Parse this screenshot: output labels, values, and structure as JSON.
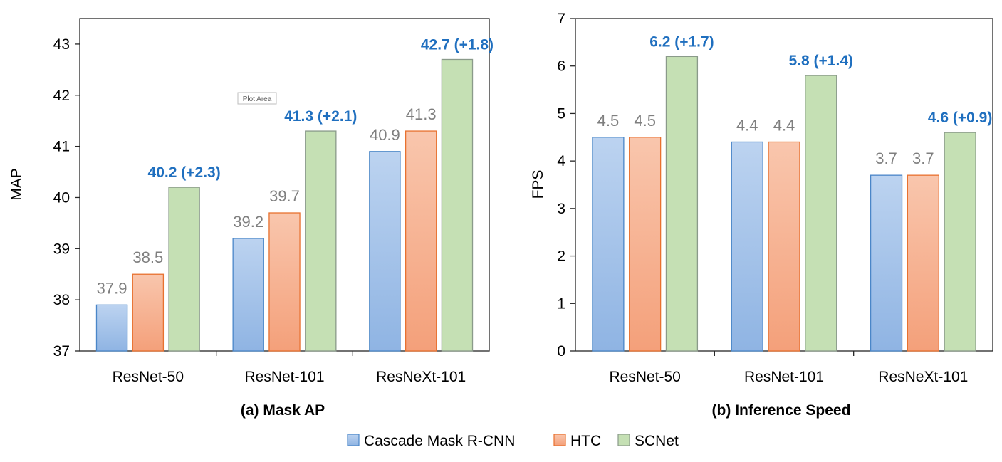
{
  "chart_data": [
    {
      "type": "bar",
      "title": "(a) Mask AP",
      "ylabel": "MAP",
      "ylim": [
        37,
        43.5
      ],
      "yticks": [
        37,
        38,
        39,
        40,
        41,
        42,
        43
      ],
      "categories": [
        "ResNet-50",
        "ResNet-101",
        "ResNeXt-101"
      ],
      "series": [
        {
          "name": "Cascade Mask R-CNN",
          "values": [
            37.9,
            39.2,
            40.9
          ],
          "labels": [
            "37.9",
            "39.2",
            "40.9"
          ]
        },
        {
          "name": "HTC",
          "values": [
            38.5,
            39.7,
            41.3
          ],
          "labels": [
            "38.5",
            "39.7",
            "41.3"
          ]
        },
        {
          "name": "SCNet",
          "values": [
            40.2,
            41.3,
            42.7
          ],
          "labels": [
            "40.2 (+2.3)",
            "41.3 (+2.1)",
            "42.7 (+1.8)"
          ]
        }
      ],
      "annotations": [
        "Plot Area"
      ],
      "grid": false
    },
    {
      "type": "bar",
      "title": "(b) Inference Speed",
      "ylabel": "FPS",
      "ylim": [
        0,
        7
      ],
      "yticks": [
        0,
        1,
        2,
        3,
        4,
        5,
        6,
        7
      ],
      "categories": [
        "ResNet-50",
        "ResNet-101",
        "ResNeXt-101"
      ],
      "series": [
        {
          "name": "Cascade Mask R-CNN",
          "values": [
            4.5,
            4.4,
            3.7
          ],
          "labels": [
            "4.5",
            "4.4",
            "3.7"
          ]
        },
        {
          "name": "HTC",
          "values": [
            4.5,
            4.4,
            3.7
          ],
          "labels": [
            "4.5",
            "4.4",
            "3.7"
          ]
        },
        {
          "name": "SCNet",
          "values": [
            6.2,
            5.8,
            4.6
          ],
          "labels": [
            "6.2 (+1.7)",
            "5.8 (+1.4)",
            "4.6 (+0.9)"
          ]
        }
      ],
      "grid": false
    }
  ],
  "legend": {
    "placement": "bottom-center",
    "items": [
      {
        "name": "Cascade Mask R-CNN",
        "color": "#8fb4e3"
      },
      {
        "name": "HTC",
        "color": "#f4a582"
      },
      {
        "name": "SCNet",
        "color": "#c5e0b4"
      }
    ]
  },
  "colors": {
    "cascade_fill_top": "#bcd3f0",
    "cascade_fill_bottom": "#8fb4e3",
    "cascade_stroke": "#4a86c8",
    "htc_fill_top": "#f9c6ad",
    "htc_fill_bottom": "#f4a07a",
    "htc_stroke": "#e8712f",
    "scnet_fill": "#c5e0b4",
    "scnet_stroke": "#8a9a8a",
    "value_label": "#7f7f7f",
    "highlight_label": "#1f6fbf"
  }
}
